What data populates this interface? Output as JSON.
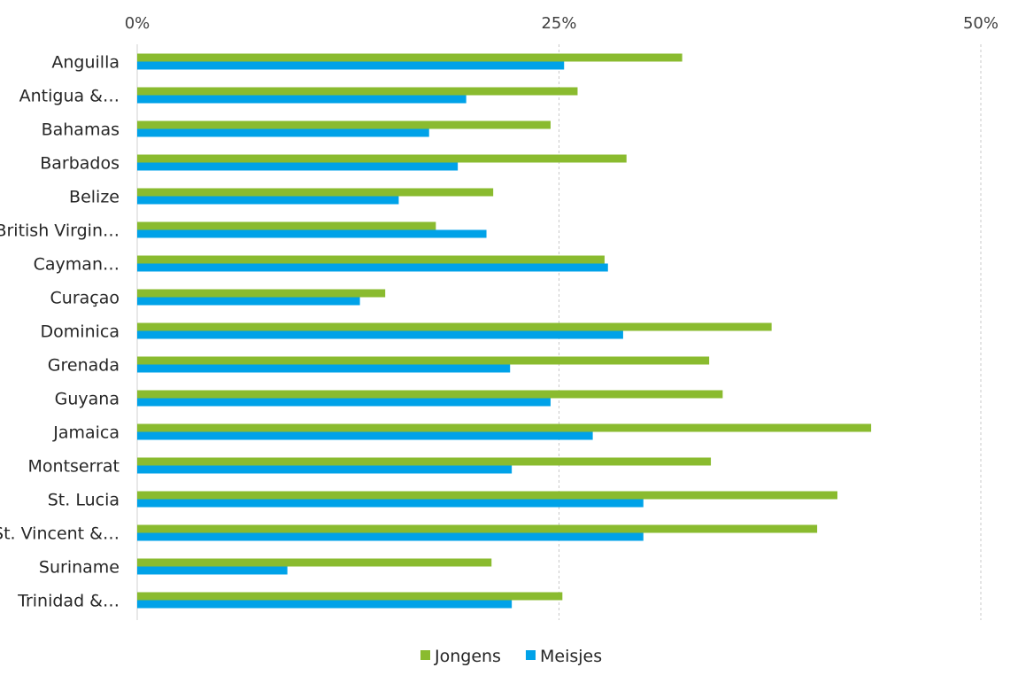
{
  "chart_data": {
    "type": "bar",
    "orientation": "horizontal",
    "categories": [
      "Anguilla",
      "Antigua &…",
      "Bahamas",
      "Barbados",
      "Belize",
      "British Virgin…",
      "Cayman…",
      "Curaçao",
      "Dominica",
      "Grenada",
      "Guyana",
      "Jamaica",
      "Montserrat",
      "St. Lucia",
      "St. Vincent &…",
      "Suriname",
      "Trinidad &…"
    ],
    "series": [
      {
        "name": "Jongens",
        "color": "#8ABB2F",
        "values": [
          32.3,
          26.1,
          24.5,
          29.0,
          21.1,
          17.7,
          27.7,
          14.7,
          37.6,
          33.9,
          34.7,
          43.5,
          34.0,
          41.5,
          40.3,
          21.0,
          25.2
        ]
      },
      {
        "name": "Meisjes",
        "color": "#00A2E8",
        "values": [
          25.3,
          19.5,
          17.3,
          19.0,
          15.5,
          20.7,
          27.9,
          13.2,
          28.8,
          22.1,
          24.5,
          27.0,
          22.2,
          30.0,
          30.0,
          8.9,
          22.2
        ]
      }
    ],
    "xlim": [
      0,
      50
    ],
    "ticks": [
      "0%",
      "25%",
      "50%"
    ],
    "tick_values": [
      0,
      25,
      50
    ],
    "grid": true,
    "axis_position": "top",
    "legend_position": "bottom"
  }
}
